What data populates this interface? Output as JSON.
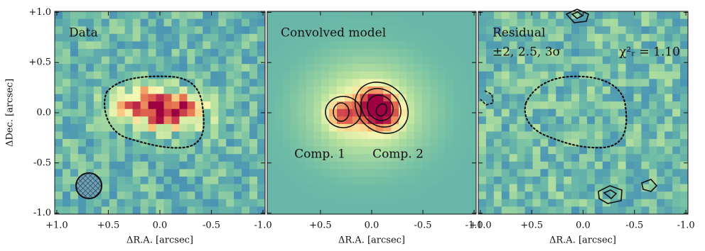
{
  "chart_data": [
    {
      "type": "image",
      "title": "Data",
      "xlabel": "ΔR.A. [arcsec]",
      "ylabel": "ΔDec. [arcsec]",
      "xlim": [
        1.02,
        -1.02
      ],
      "ylim": [
        -1.01,
        1.01
      ],
      "xticks": [
        {
          "value": 1.0,
          "label": "+1.0"
        },
        {
          "value": 0.5,
          "label": "+0.5"
        },
        {
          "value": 0,
          "label": "0.0"
        },
        {
          "value": -0.5,
          "label": "-0.5"
        },
        {
          "value": -1.0,
          "label": "-1.0"
        }
      ],
      "yticks": [
        {
          "value": 1.0,
          "label": "+1.0"
        },
        {
          "value": 0.5,
          "label": "+0.5"
        },
        {
          "value": 0,
          "label": "0.0"
        },
        {
          "value": -0.5,
          "label": "-0.5"
        },
        {
          "value": -1.0,
          "label": "-1.0"
        }
      ]
    },
    {
      "type": "image",
      "title": "Convolved model",
      "xlabel": "ΔR.A. [arcsec]",
      "xlim": [
        1.02,
        -1.02
      ],
      "ylim": [
        -1.01,
        1.01
      ],
      "xticks": [
        {
          "value": 0.5,
          "label": "+0.5"
        },
        {
          "value": 0,
          "label": "0.0"
        },
        {
          "value": -0.5,
          "label": "-0.5"
        },
        {
          "value": -1.0,
          "label": "-1.0"
        }
      ],
      "annotations": [
        "Comp. 1",
        "Comp. 2"
      ]
    },
    {
      "type": "image",
      "title": "Residual",
      "xlabel": "ΔR.A. [arcsec]",
      "xlim": [
        1.02,
        -1.02
      ],
      "ylim": [
        -1.01,
        1.01
      ],
      "xticks": [
        {
          "value": 1.0,
          "label": "+1.0"
        },
        {
          "value": 0.5,
          "label": "+0.5"
        },
        {
          "value": 0,
          "label": "0.0"
        },
        {
          "value": -0.5,
          "label": "-0.5"
        },
        {
          "value": -1.0,
          "label": "-1.0"
        }
      ],
      "annotations": [
        "±2, 2.5, 3σ",
        "χ²ᵣ = 1.10"
      ]
    }
  ]
}
